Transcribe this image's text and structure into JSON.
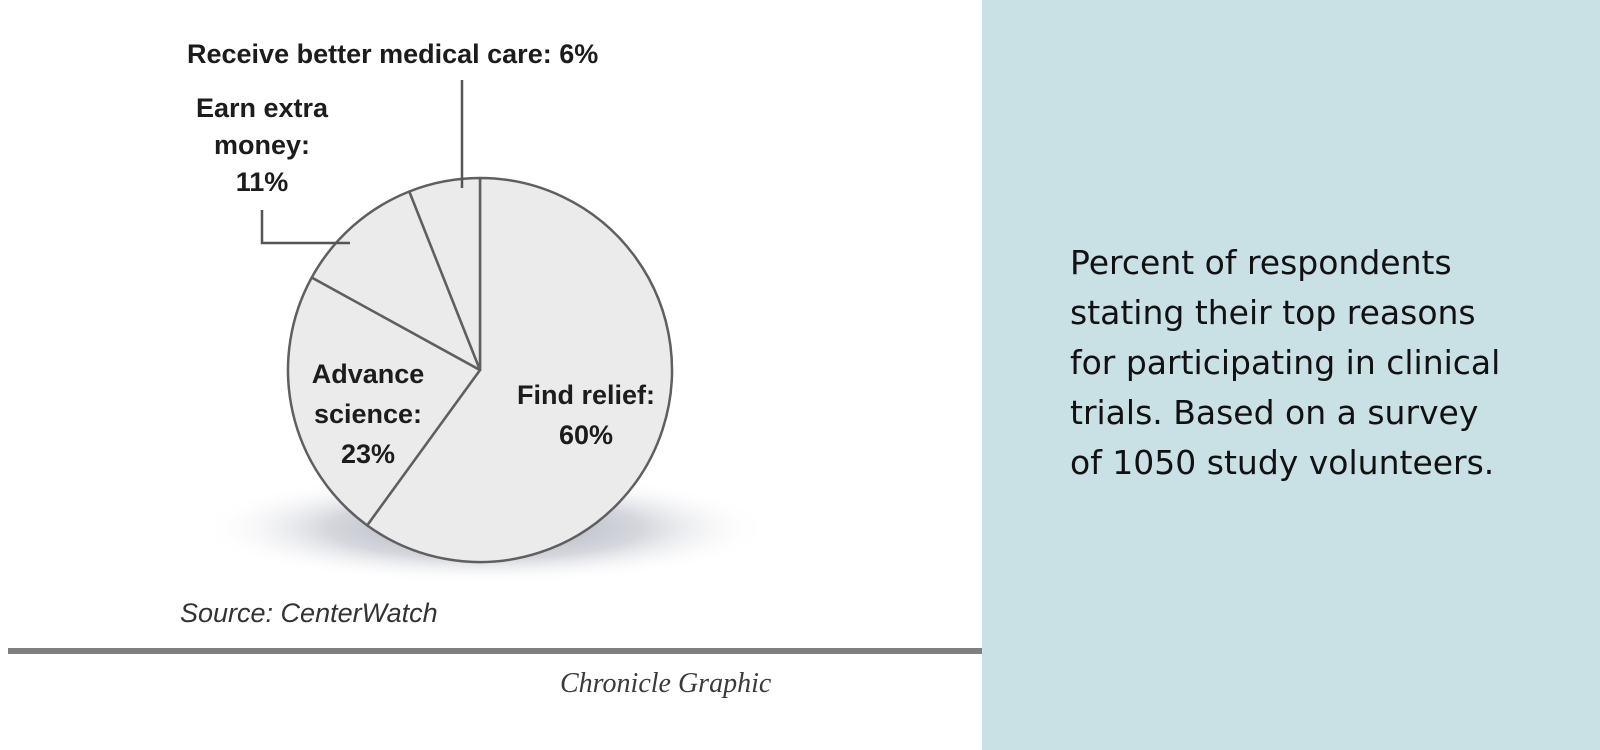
{
  "chart_data": {
    "type": "pie",
    "categories": [
      "Find relief",
      "Advance science",
      "Earn extra money",
      "Receive better medical care"
    ],
    "values": [
      60,
      23,
      11,
      6
    ],
    "unit": "%",
    "labels": {
      "find_relief": {
        "lines": [
          "Find relief:",
          "60%"
        ]
      },
      "advance_science": {
        "lines": [
          "Advance",
          "science:",
          "23%"
        ]
      },
      "earn_extra_money": {
        "lines": [
          "Earn extra",
          "money:",
          "11%"
        ]
      },
      "medical_care": {
        "lines": [
          "Receive better medical care: 6%"
        ]
      }
    },
    "colors": {
      "slice_fill": "#ebebeb",
      "slice_stroke": "#5f5f5f",
      "shadow": "#a9adb8"
    }
  },
  "source": "Source: CenterWatch",
  "credit": "Chronicle Graphic",
  "caption": "Percent of respondents\nstating their top reasons\nfor participating in clinical\ntrials.  Based on a survey\nof 1050 study volunteers.",
  "colors": {
    "caption_background": "#c9e0e5",
    "rule": "#7f7f7f"
  }
}
